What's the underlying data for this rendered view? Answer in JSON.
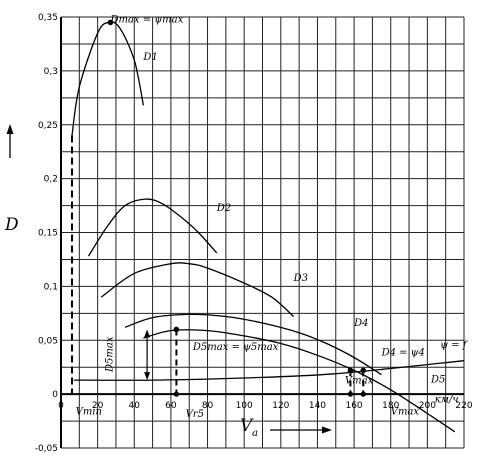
{
  "chart_data": {
    "type": "line",
    "title": "",
    "xlabel": "V",
    "xlabel_sub": "a",
    "ylabel": "D",
    "x_unit": "км/ч",
    "xlim": [
      0,
      220
    ],
    "ylim": [
      -0.05,
      0.35
    ],
    "grid": true,
    "x_ticks": [
      "0",
      "20",
      "40",
      "60",
      "80",
      "100",
      "120",
      "140",
      "160",
      "180",
      "200",
      "220"
    ],
    "y_ticks": [
      "0,35",
      "0,3",
      "0,25",
      "0,2",
      "0,15",
      "0,1",
      "0,05",
      "0",
      "-0,05"
    ],
    "series": [
      {
        "name": "D1",
        "x": [
          6,
          10,
          20,
          26,
          32,
          40,
          45
        ],
        "y": [
          0.24,
          0.285,
          0.335,
          0.345,
          0.34,
          0.31,
          0.268
        ]
      },
      {
        "name": "D2",
        "x": [
          15,
          25,
          35,
          46,
          55,
          65,
          75,
          85
        ],
        "y": [
          0.128,
          0.155,
          0.175,
          0.181,
          0.177,
          0.165,
          0.15,
          0.131
        ]
      },
      {
        "name": "D3",
        "x": [
          22,
          40,
          60,
          70,
          80,
          100,
          115,
          127
        ],
        "y": [
          0.09,
          0.112,
          0.121,
          0.121,
          0.117,
          0.103,
          0.09,
          0.072
        ]
      },
      {
        "name": "D4",
        "x": [
          35,
          50,
          70,
          90,
          110,
          130,
          145,
          160,
          175
        ],
        "y": [
          0.062,
          0.071,
          0.074,
          0.072,
          0.066,
          0.057,
          0.047,
          0.034,
          0.018
        ]
      },
      {
        "name": "D5",
        "x": [
          45,
          60,
          80,
          100,
          120,
          140,
          160,
          180,
          200,
          215
        ],
        "y": [
          0.052,
          0.059,
          0.059,
          0.054,
          0.047,
          0.036,
          0.022,
          0.004,
          -0.018,
          -0.035
        ]
      },
      {
        "name": "ψ = f",
        "x": [
          7,
          50,
          100,
          150,
          220
        ],
        "y": [
          0.013,
          0.013,
          0.015,
          0.019,
          0.031
        ]
      }
    ],
    "annotations": [
      {
        "text": "Dmax = ψmax",
        "x": 27,
        "y": 0.345
      },
      {
        "text": "D1",
        "x": 45,
        "y": 0.31
      },
      {
        "text": "D2",
        "x": 85,
        "y": 0.17
      },
      {
        "text": "D3",
        "x": 127,
        "y": 0.105
      },
      {
        "text": "D4",
        "x": 160,
        "y": 0.063
      },
      {
        "text": "D5max = ψ5max",
        "x": 72,
        "y": 0.041
      },
      {
        "text": "D5max",
        "x": 28,
        "y": 0.037
      },
      {
        "text": "D4 = ψ4",
        "x": 175,
        "y": 0.036
      },
      {
        "text": "ψ = f",
        "x": 207,
        "y": 0.043
      },
      {
        "text": "Vmax",
        "x": 155,
        "y": 0.01
      },
      {
        "text": "D5",
        "x": 202,
        "y": 0.011
      },
      {
        "text": "Vmin",
        "x": 8,
        "y": -0.019
      },
      {
        "text": "Vr5",
        "x": 68,
        "y": -0.021
      },
      {
        "text": "Vmax",
        "x": 180,
        "y": -0.019
      },
      {
        "text": "км/ч",
        "x": 204,
        "y": -0.008
      }
    ],
    "markers": [
      {
        "x": 27,
        "y": 0.345,
        "drop": false
      },
      {
        "x": 63,
        "y": 0.06,
        "drop": true
      },
      {
        "x": 158,
        "y": 0.022,
        "drop": true
      },
      {
        "x": 165,
        "y": 0.022,
        "drop": true
      }
    ],
    "v_min": 6
  }
}
